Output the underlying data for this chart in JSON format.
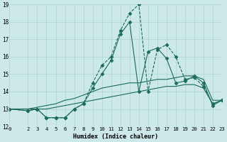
{
  "xlabel": "Humidex (Indice chaleur)",
  "bg_color": "#cce8e8",
  "line_color": "#1a6b5a",
  "xlim": [
    0,
    23
  ],
  "ylim": [
    12,
    19
  ],
  "xticks": [
    0,
    2,
    3,
    4,
    5,
    6,
    7,
    8,
    9,
    10,
    11,
    12,
    13,
    14,
    15,
    16,
    17,
    18,
    19,
    20,
    21,
    22,
    23
  ],
  "yticks": [
    12,
    13,
    14,
    15,
    16,
    17,
    18,
    19
  ],
  "grid_color": "#aad4d4",
  "series": [
    {
      "x": [
        0,
        2,
        3,
        4,
        5,
        6,
        7,
        8,
        9,
        10,
        11,
        12,
        13,
        14,
        15,
        16,
        17,
        18,
        19,
        20,
        21,
        22,
        23
      ],
      "y": [
        13.0,
        12.9,
        13.0,
        12.5,
        12.5,
        12.5,
        13.0,
        13.3,
        14.5,
        15.5,
        16.0,
        17.5,
        18.5,
        19.0,
        14.0,
        16.4,
        16.7,
        16.0,
        14.7,
        14.8,
        14.3,
        13.3,
        13.5
      ],
      "ls": "--",
      "marker": "D",
      "ms": 2.5
    },
    {
      "x": [
        0,
        2,
        3,
        4,
        5,
        6,
        7,
        8,
        9,
        10,
        11,
        12,
        13,
        14,
        15,
        16,
        17,
        18,
        19,
        20,
        21,
        22,
        23
      ],
      "y": [
        13.0,
        12.9,
        13.0,
        12.5,
        12.5,
        12.5,
        13.0,
        13.3,
        14.2,
        15.0,
        15.8,
        17.3,
        18.0,
        14.0,
        16.3,
        16.5,
        15.9,
        14.5,
        14.6,
        14.9,
        14.5,
        13.2,
        13.5
      ],
      "ls": "-",
      "marker": "D",
      "ms": 2.5
    },
    {
      "x": [
        0,
        2,
        3,
        4,
        5,
        6,
        7,
        8,
        9,
        10,
        11,
        12,
        13,
        14,
        15,
        16,
        17,
        18,
        19,
        20,
        21,
        22,
        23
      ],
      "y": [
        13.0,
        13.0,
        13.1,
        13.2,
        13.3,
        13.5,
        13.6,
        13.8,
        14.0,
        14.2,
        14.3,
        14.4,
        14.5,
        14.5,
        14.6,
        14.7,
        14.7,
        14.8,
        14.9,
        14.9,
        14.7,
        13.5,
        13.5
      ],
      "ls": "-",
      "marker": null,
      "ms": 0
    },
    {
      "x": [
        0,
        2,
        3,
        4,
        5,
        6,
        7,
        8,
        9,
        10,
        11,
        12,
        13,
        14,
        15,
        16,
        17,
        18,
        19,
        20,
        21,
        22,
        23
      ],
      "y": [
        13.0,
        13.0,
        13.0,
        13.0,
        13.1,
        13.2,
        13.3,
        13.4,
        13.5,
        13.6,
        13.7,
        13.8,
        13.9,
        14.0,
        14.1,
        14.2,
        14.3,
        14.3,
        14.4,
        14.4,
        14.2,
        13.3,
        13.5
      ],
      "ls": "-",
      "marker": null,
      "ms": 0
    }
  ]
}
